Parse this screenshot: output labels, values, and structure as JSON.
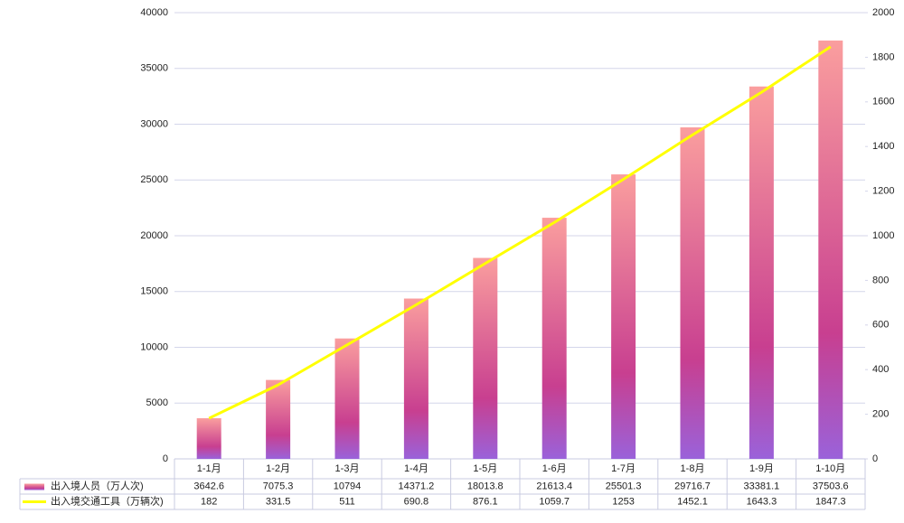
{
  "chart_data": {
    "type": "combo",
    "categories": [
      "1-1月",
      "1-2月",
      "1-3月",
      "1-4月",
      "1-5月",
      "1-6月",
      "1-7月",
      "1-8月",
      "1-9月",
      "1-10月"
    ],
    "series": [
      {
        "name": "出入境人员（万人次)",
        "type": "bar",
        "color": "#c83f90",
        "values": [
          3642.6,
          7075.3,
          10794,
          14371.2,
          18013.8,
          21613.4,
          25501.3,
          29716.7,
          33381.1,
          37503.6
        ]
      },
      {
        "name": "出入境交通工具（万辆次)",
        "type": "line",
        "color": "#ffff00",
        "axis": "y2",
        "values": [
          182,
          331.5,
          511,
          690.8,
          876.1,
          1059.7,
          1253,
          1452.1,
          1643.3,
          1847.3
        ]
      }
    ],
    "ylim": [
      0,
      40000
    ],
    "yticks": [
      0,
      5000,
      10000,
      15000,
      20000,
      25000,
      30000,
      35000,
      40000
    ],
    "y2lim": [
      0,
      2000
    ],
    "y2ticks": [
      0,
      200,
      400,
      600,
      800,
      1000,
      1200,
      1400,
      1600,
      1800,
      2000
    ],
    "grid": true
  }
}
